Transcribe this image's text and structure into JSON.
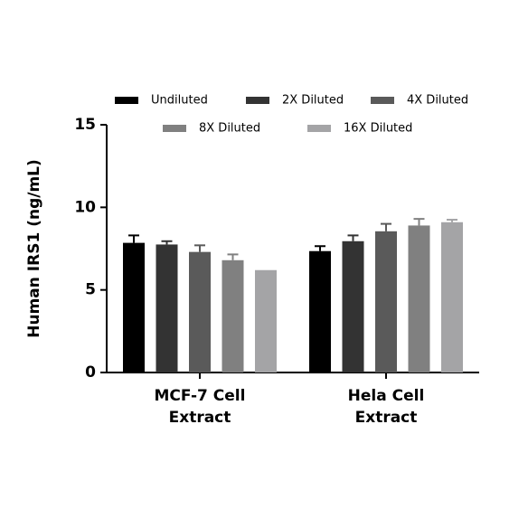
{
  "chart_data": {
    "type": "bar",
    "y_label": "Human IRS1 (ng/mL)",
    "categories": [
      "MCF-7 Cell Extract",
      "Hela Cell Extract"
    ],
    "series": [
      {
        "name": "Undiluted",
        "color": "#000000",
        "values": [
          7.85,
          7.35
        ],
        "errors": [
          0.45,
          0.3
        ]
      },
      {
        "name": "2X Diluted",
        "color": "#333333",
        "values": [
          7.75,
          7.95
        ],
        "errors": [
          0.2,
          0.35
        ]
      },
      {
        "name": "4X Diluted",
        "color": "#5a5a5a",
        "values": [
          7.3,
          8.55
        ],
        "errors": [
          0.4,
          0.45
        ]
      },
      {
        "name": "8X Diluted",
        "color": "#808080",
        "values": [
          6.8,
          8.9
        ],
        "errors": [
          0.35,
          0.4
        ]
      },
      {
        "name": "16X Diluted",
        "color": "#a4a4a6",
        "values": [
          6.2,
          9.1
        ],
        "errors": [
          null,
          0.15
        ]
      }
    ],
    "ylim": [
      0,
      15
    ],
    "yticks": [
      0,
      5,
      10,
      15
    ]
  }
}
